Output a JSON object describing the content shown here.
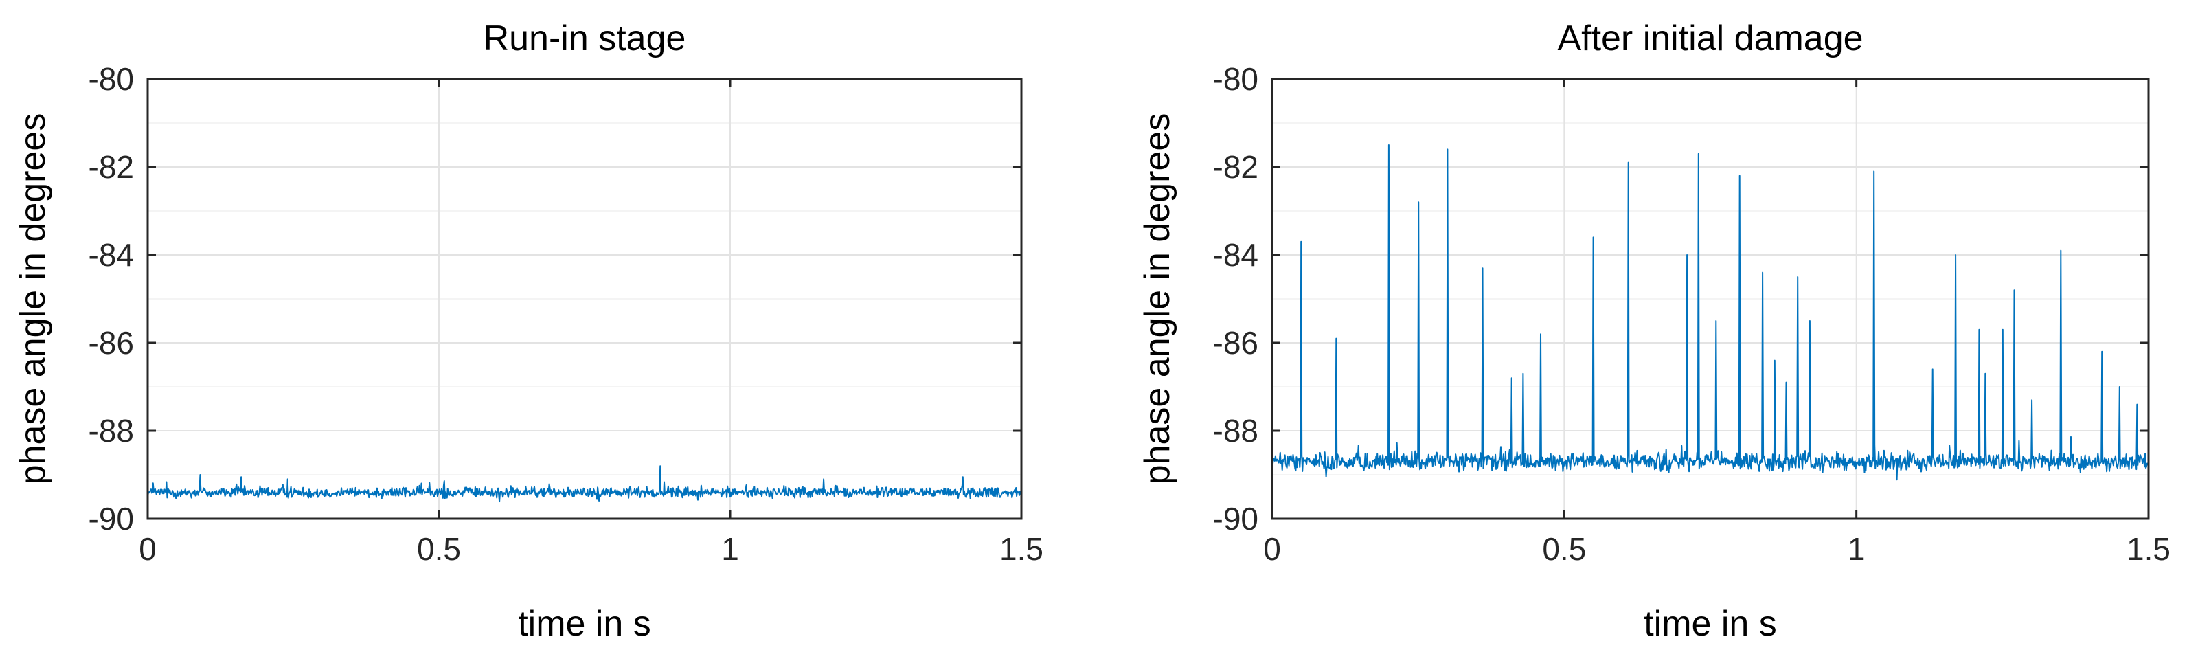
{
  "chart_data": [
    {
      "type": "line",
      "title": "Run-in stage",
      "xlabel": "time in s",
      "ylabel": "phase angle in degrees",
      "xlim": [
        0,
        1.5
      ],
      "ylim": [
        -90,
        -80
      ],
      "xticks": [
        0,
        0.5,
        1,
        1.5
      ],
      "xtick_labels": [
        "0",
        "0.5",
        "1",
        "1.5"
      ],
      "yticks": [
        -90,
        -88,
        -86,
        -84,
        -82,
        -80
      ],
      "ytick_labels": [
        "-90",
        "-88",
        "-86",
        "-84",
        "-82",
        "-80"
      ],
      "grid": true,
      "color": "#0072BD",
      "series": [
        {
          "baseline": -89.4,
          "noise_amplitude": 0.18,
          "spikes": [
            {
              "x": 0.09,
              "y": -89.0
            },
            {
              "x": 0.16,
              "y": -89.05
            },
            {
              "x": 0.24,
              "y": -89.1
            },
            {
              "x": 0.88,
              "y": -88.8
            },
            {
              "x": 1.16,
              "y": -89.1
            },
            {
              "x": 1.4,
              "y": -89.05
            }
          ]
        }
      ]
    },
    {
      "type": "line",
      "title": "After initial damage",
      "xlabel": "time in s",
      "ylabel": "phase angle in degrees",
      "xlim": [
        0,
        1.5
      ],
      "ylim": [
        -90,
        -80
      ],
      "xticks": [
        0,
        0.5,
        1,
        1.5
      ],
      "xtick_labels": [
        "0",
        "0.5",
        "1",
        "1.5"
      ],
      "yticks": [
        -90,
        -88,
        -86,
        -84,
        -82,
        -80
      ],
      "ytick_labels": [
        "-90",
        "-88",
        "-86",
        "-84",
        "-82",
        "-80"
      ],
      "grid": true,
      "color": "#0072BD",
      "series": [
        {
          "baseline": -88.7,
          "noise_amplitude": 0.3,
          "spikes": [
            {
              "x": 0.05,
              "y": -83.7
            },
            {
              "x": 0.11,
              "y": -85.9
            },
            {
              "x": 0.2,
              "y": -81.5
            },
            {
              "x": 0.25,
              "y": -82.8
            },
            {
              "x": 0.3,
              "y": -81.6
            },
            {
              "x": 0.36,
              "y": -84.3
            },
            {
              "x": 0.41,
              "y": -86.8
            },
            {
              "x": 0.43,
              "y": -86.7
            },
            {
              "x": 0.46,
              "y": -85.8
            },
            {
              "x": 0.55,
              "y": -83.6
            },
            {
              "x": 0.61,
              "y": -81.9
            },
            {
              "x": 0.71,
              "y": -84.0
            },
            {
              "x": 0.73,
              "y": -81.7
            },
            {
              "x": 0.76,
              "y": -85.5
            },
            {
              "x": 0.8,
              "y": -82.2
            },
            {
              "x": 0.84,
              "y": -84.4
            },
            {
              "x": 0.86,
              "y": -86.4
            },
            {
              "x": 0.88,
              "y": -86.9
            },
            {
              "x": 0.9,
              "y": -84.5
            },
            {
              "x": 0.92,
              "y": -85.5
            },
            {
              "x": 1.03,
              "y": -82.1
            },
            {
              "x": 1.13,
              "y": -86.6
            },
            {
              "x": 1.17,
              "y": -84.0
            },
            {
              "x": 1.21,
              "y": -85.7
            },
            {
              "x": 1.22,
              "y": -86.7
            },
            {
              "x": 1.25,
              "y": -85.7
            },
            {
              "x": 1.27,
              "y": -84.8
            },
            {
              "x": 1.3,
              "y": -87.3
            },
            {
              "x": 1.35,
              "y": -83.9
            },
            {
              "x": 1.42,
              "y": -86.2
            },
            {
              "x": 1.45,
              "y": -87.0
            },
            {
              "x": 1.48,
              "y": -87.4
            }
          ]
        }
      ]
    }
  ]
}
